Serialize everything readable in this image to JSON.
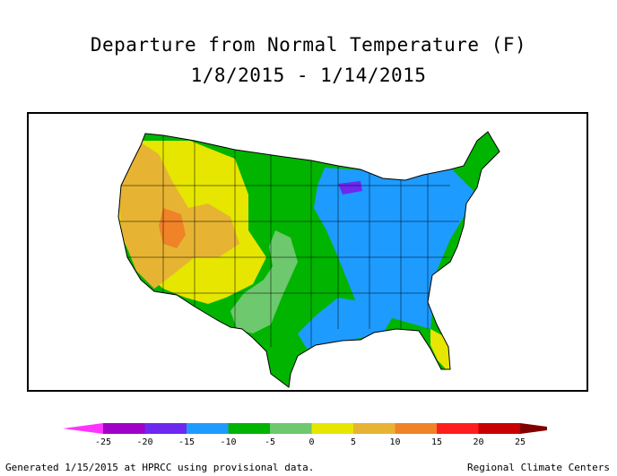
{
  "title_line1": "Departure from Normal Temperature (F)",
  "title_line2": "1/8/2015 - 1/14/2015",
  "footer_left": "Generated 1/15/2015 at HPRCC using provisional data.",
  "footer_right": "Regional Climate Centers",
  "legend": {
    "colors": [
      "#ff33ff",
      "#a000c8",
      "#6e28f0",
      "#1e9bff",
      "#00b400",
      "#6ec86e",
      "#e6e600",
      "#e6b432",
      "#f08228",
      "#ff1e1e",
      "#c80000",
      "#800000"
    ],
    "ticks": [
      "-25",
      "-20",
      "-15",
      "-10",
      "-5",
      "0",
      "5",
      "10",
      "15",
      "20",
      "25"
    ]
  },
  "palette": {
    "blue": "#1e9bff",
    "green": "#00b400",
    "lightgreen": "#6ec86e",
    "yellow": "#e6e600",
    "gold": "#e6b432",
    "orange": "#f08228",
    "purple": "#6e28f0"
  }
}
